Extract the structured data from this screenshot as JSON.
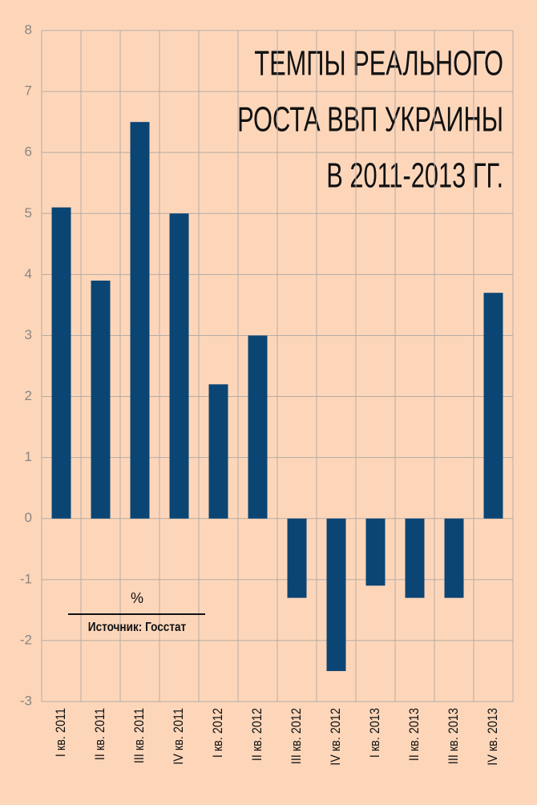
{
  "chart_data": {
    "type": "bar",
    "title": [
      "ТЕМПЫ РЕАЛЬНОГО",
      "РОСТА ВВП УКРАИНЫ",
      "В 2011-2013 ГГ."
    ],
    "y_label": "%",
    "source": "Источник: Госстат",
    "categories": [
      "I кв. 2011",
      "II кв. 2011",
      "III кв. 2011",
      "IV кв. 2011",
      "I кв. 2012",
      "II кв. 2012",
      "III кв. 2012",
      "IV кв. 2012",
      "I кв. 2013",
      "II кв. 2013",
      "III кв. 2013",
      "IV кв. 2013"
    ],
    "values": [
      5.1,
      3.9,
      6.5,
      5.0,
      2.2,
      3.0,
      -1.3,
      -2.5,
      -1.1,
      -1.3,
      -1.3,
      3.7
    ],
    "color": "#0b4574",
    "ylim": [
      -3,
      8
    ],
    "yticks": [
      -3,
      -2,
      -1,
      0,
      1,
      2,
      3,
      4,
      5,
      6,
      7,
      8
    ],
    "grid": true
  }
}
